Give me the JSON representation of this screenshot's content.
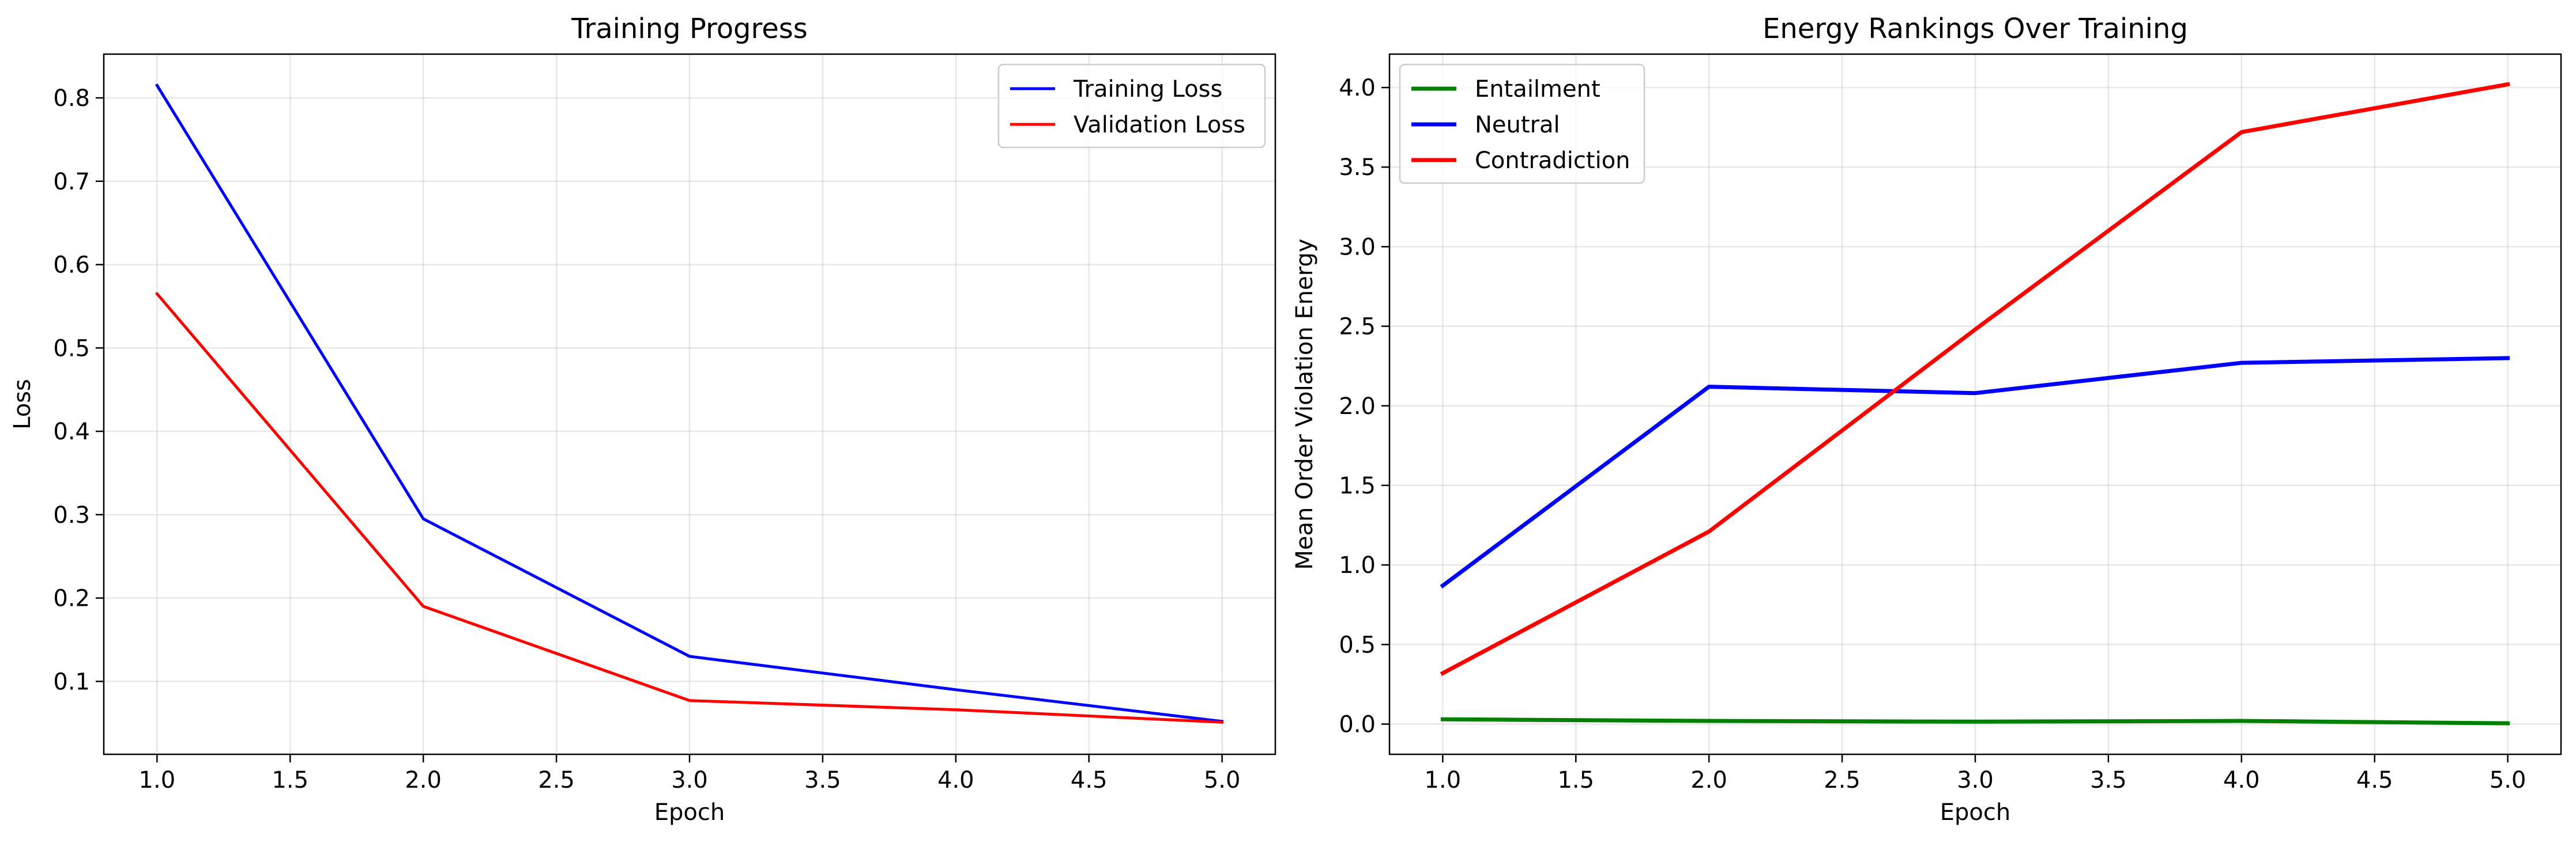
{
  "chart_data": [
    {
      "type": "line",
      "title": "Training Progress",
      "xlabel": "Epoch",
      "ylabel": "Loss",
      "xlim": [
        0.8,
        5.2
      ],
      "ylim": [
        0.0125,
        0.8525
      ],
      "x_ticks": [
        1.0,
        1.5,
        2.0,
        2.5,
        3.0,
        3.5,
        4.0,
        4.5,
        5.0
      ],
      "y_ticks": [
        0.1,
        0.2,
        0.3,
        0.4,
        0.5,
        0.6,
        0.7,
        0.8
      ],
      "grid": true,
      "legend": "upper right",
      "x": [
        1,
        2,
        3,
        4,
        5
      ],
      "series": [
        {
          "name": "Training Loss",
          "color": "#0000ff",
          "values": [
            0.815,
            0.295,
            0.13,
            0.09,
            0.052
          ]
        },
        {
          "name": "Validation Loss",
          "color": "#ff0000",
          "values": [
            0.565,
            0.19,
            0.077,
            0.066,
            0.051
          ]
        }
      ]
    },
    {
      "type": "line",
      "title": "Energy Rankings Over Training",
      "xlabel": "Epoch",
      "ylabel": "Mean Order Violation Energy",
      "xlim": [
        0.8,
        5.2
      ],
      "ylim": [
        -0.19,
        4.21
      ],
      "x_ticks": [
        1.0,
        1.5,
        2.0,
        2.5,
        3.0,
        3.5,
        4.0,
        4.5,
        5.0
      ],
      "y_ticks": [
        0.0,
        0.5,
        1.0,
        1.5,
        2.0,
        2.5,
        3.0,
        3.5,
        4.0
      ],
      "grid": true,
      "legend": "upper left",
      "x": [
        1,
        2,
        3,
        4,
        5
      ],
      "series": [
        {
          "name": "Entailment",
          "color": "#008000",
          "values": [
            0.03,
            0.02,
            0.015,
            0.02,
            0.005
          ]
        },
        {
          "name": "Neutral",
          "color": "#0000ff",
          "values": [
            0.87,
            2.12,
            2.08,
            2.27,
            2.3
          ]
        },
        {
          "name": "Contradiction",
          "color": "#ff0000",
          "values": [
            0.32,
            1.21,
            2.48,
            3.72,
            4.02
          ]
        }
      ]
    }
  ]
}
